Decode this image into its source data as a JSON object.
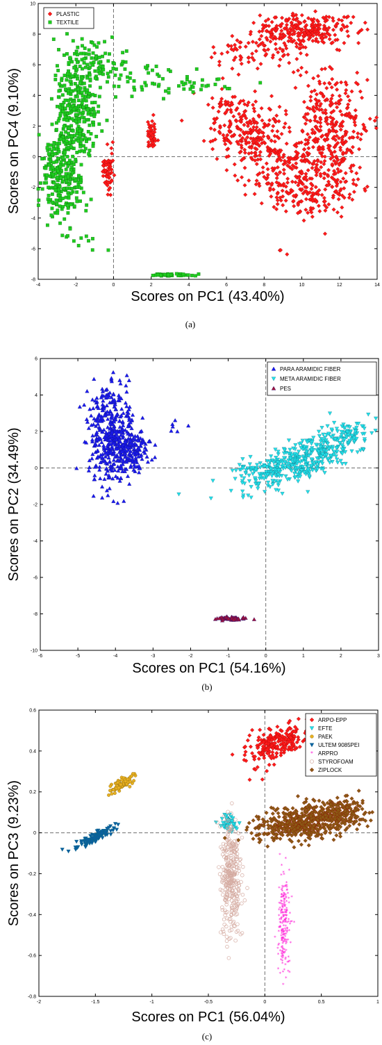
{
  "captions": [
    "(a)",
    "(b)",
    "(c)"
  ],
  "chart_data": [
    {
      "type": "scatter",
      "xlabel": "Scores on PC1 (43.40%)",
      "ylabel": "Scores on PC4 (9.10%)",
      "xlim": [
        -4,
        14
      ],
      "ylim": [
        -8,
        10
      ],
      "xticks": [
        -4,
        -2,
        0,
        2,
        4,
        6,
        8,
        10,
        12,
        14
      ],
      "yticks": [
        -8,
        -6,
        -4,
        -2,
        0,
        2,
        4,
        6,
        8,
        10
      ],
      "reference_lines": {
        "x": 0,
        "y": 0
      },
      "legend_position": "top-left",
      "series": [
        {
          "name": "PLASTIC",
          "color": "#ff1a1a",
          "marker": "diamond",
          "clusters": [
            {
              "center": [
                10,
                8.2
              ],
              "spread": [
                1.3,
                0.55
              ],
              "count": 260,
              "tilt": 0
            },
            {
              "center": [
                7.5,
                6.8
              ],
              "spread": [
                1.3,
                0.7
              ],
              "count": 70,
              "tilt": 0
            },
            {
              "center": [
                7.2,
                1.6
              ],
              "spread": [
                1.0,
                1.0
              ],
              "count": 220,
              "tilt": -0.2
            },
            {
              "center": [
                11.6,
                2.0
              ],
              "spread": [
                1.0,
                1.9
              ],
              "count": 320,
              "tilt": 0
            },
            {
              "center": [
                10.0,
                -1.3
              ],
              "spread": [
                1.6,
                1.1
              ],
              "count": 220,
              "tilt": -0.3
            },
            {
              "center": [
                9.5,
                -2.7
              ],
              "spread": [
                1.2,
                0.6
              ],
              "count": 70,
              "tilt": -0.2
            },
            {
              "center": [
                2.0,
                1.3
              ],
              "spread": [
                0.12,
                0.45
              ],
              "count": 45,
              "tilt": 0
            },
            {
              "center": [
                -0.3,
                -1.0
              ],
              "spread": [
                0.18,
                0.75
              ],
              "count": 60,
              "tilt": 0
            },
            {
              "center": [
                6.0,
                3.4
              ],
              "spread": [
                0.4,
                0.5
              ],
              "count": 25,
              "tilt": 0
            },
            {
              "center": [
                9.3,
                -6.1
              ],
              "spread": [
                0.3,
                0.2
              ],
              "count": 3,
              "tilt": 0
            }
          ]
        },
        {
          "name": "TEXTILE",
          "color": "#1fcc1f",
          "marker": "square",
          "clusters": [
            {
              "center": [
                -2.0,
                3.0
              ],
              "spread": [
                0.6,
                1.9
              ],
              "count": 320,
              "tilt": 0.25
            },
            {
              "center": [
                -2.8,
                -1.5
              ],
              "spread": [
                0.55,
                1.3
              ],
              "count": 240,
              "tilt": 0
            },
            {
              "center": [
                -1.0,
                6.2
              ],
              "spread": [
                0.8,
                0.8
              ],
              "count": 70,
              "tilt": 0
            },
            {
              "center": [
                1.8,
                5.4
              ],
              "spread": [
                1.7,
                0.7
              ],
              "count": 50,
              "tilt": 0
            },
            {
              "center": [
                4.2,
                4.7
              ],
              "spread": [
                0.9,
                0.3
              ],
              "count": 20,
              "tilt": 0
            },
            {
              "center": [
                -1.7,
                -5.2
              ],
              "spread": [
                0.5,
                0.5
              ],
              "count": 10,
              "tilt": 0
            },
            {
              "center": [
                2.9,
                -7.7
              ],
              "spread": [
                0.6,
                0.05
              ],
              "count": 45,
              "tilt": 0
            }
          ]
        }
      ]
    },
    {
      "type": "scatter",
      "xlabel": "Scores on PC1 (54.16%)",
      "ylabel": "Scores on PC2 (34.49%)",
      "xlim": [
        -6,
        3
      ],
      "ylim": [
        -10,
        6
      ],
      "xticks": [
        -6,
        -5,
        -4,
        -3,
        -2,
        -1,
        0,
        1,
        2,
        3
      ],
      "yticks": [
        -10,
        -8,
        -6,
        -4,
        -2,
        0,
        2,
        4,
        6
      ],
      "reference_lines": {
        "x": 0,
        "y": 0
      },
      "legend_position": "top-right",
      "series": [
        {
          "name": "PARA ARAMIDIC FIBER",
          "color": "#1a1aee",
          "marker": "triangle-up",
          "clusters": [
            {
              "center": [
                -4.1,
                1.7
              ],
              "spread": [
                0.32,
                1.4
              ],
              "count": 420,
              "tilt": 0
            },
            {
              "center": [
                -3.55,
                0.9
              ],
              "spread": [
                0.22,
                0.55
              ],
              "count": 120,
              "tilt": 0
            },
            {
              "center": [
                -2.6,
                2.1
              ],
              "spread": [
                0.2,
                0.3
              ],
              "count": 6,
              "tilt": 0
            }
          ]
        },
        {
          "name": "META ARAMIDIC FIBER",
          "color": "#22e0e8",
          "marker": "triangle-down",
          "clusters": [
            {
              "center": [
                1.0,
                0.5
              ],
              "spread": [
                0.9,
                0.55
              ],
              "count": 460,
              "tilt": 0.42
            },
            {
              "center": [
                2.3,
                1.9
              ],
              "spread": [
                0.25,
                0.35
              ],
              "count": 40,
              "tilt": 0
            },
            {
              "center": [
                -0.3,
                0.0
              ],
              "spread": [
                0.25,
                0.08
              ],
              "count": 15,
              "tilt": 0
            }
          ]
        },
        {
          "name": "PES",
          "color": "#a0123a",
          "marker": "triangle-up",
          "clusters": [
            {
              "center": [
                -0.95,
                -8.25
              ],
              "spread": [
                0.18,
                0.04
              ],
              "count": 60,
              "tilt": 0
            }
          ]
        }
      ]
    },
    {
      "type": "scatter",
      "xlabel": "Scores on PC1 (56.04%)",
      "ylabel": "Scores on PC3 (9.23%)",
      "xlim": [
        -2,
        1
      ],
      "ylim": [
        -0.8,
        0.6
      ],
      "xticks": [
        -2,
        -1.5,
        -1,
        -0.5,
        0,
        0.5,
        1
      ],
      "yticks": [
        -0.8,
        -0.6,
        -0.4,
        -0.2,
        0,
        0.2,
        0.4,
        0.6
      ],
      "reference_lines": {
        "x": 0,
        "y": 0
      },
      "legend_position": "top-right",
      "series": [
        {
          "name": "ARPO-EPP",
          "color": "#ff1a1a",
          "marker": "diamond",
          "clusters": [
            {
              "center": [
                0.12,
                0.44
              ],
              "spread": [
                0.13,
                0.035
              ],
              "count": 230,
              "tilt": 0.35
            },
            {
              "center": [
                -0.05,
                0.27
              ],
              "spread": [
                0.03,
                0.03
              ],
              "count": 6,
              "tilt": 0
            }
          ]
        },
        {
          "name": "EFTE",
          "color": "#22e0e8",
          "marker": "triangle-down",
          "clusters": [
            {
              "center": [
                -0.32,
                0.05
              ],
              "spread": [
                0.035,
                0.02
              ],
              "count": 50,
              "tilt": 0
            }
          ]
        },
        {
          "name": "PAEK",
          "color": "#e8b020",
          "marker": "circle",
          "clusters": [
            {
              "center": [
                -1.27,
                0.235
              ],
              "spread": [
                0.065,
                0.012
              ],
              "count": 80,
              "tilt": 0.7
            }
          ]
        },
        {
          "name": "ULTEM 9085PEI",
          "color": "#0a5fa0",
          "marker": "triangle-down",
          "clusters": [
            {
              "center": [
                -1.5,
                -0.02
              ],
              "spread": [
                0.085,
                0.012
              ],
              "count": 100,
              "tilt": 0.55
            }
          ]
        },
        {
          "name": "ARPRO",
          "color": "#ff22d8",
          "marker": "star",
          "clusters": [
            {
              "center": [
                0.17,
                -0.43
              ],
              "spread": [
                0.025,
                0.13
              ],
              "count": 200,
              "tilt": 0.15
            }
          ]
        },
        {
          "name": "STYROFOAM",
          "color": "#d4aaa0",
          "marker": "open-circle",
          "clusters": [
            {
              "center": [
                -0.3,
                -0.22
              ],
              "spread": [
                0.045,
                0.14
              ],
              "count": 320,
              "tilt": 0
            }
          ]
        },
        {
          "name": "ZIPLOCK",
          "color": "#8a5a14",
          "marker": "diamond",
          "clusters": [
            {
              "center": [
                0.35,
                0.05
              ],
              "spread": [
                0.22,
                0.04
              ],
              "count": 520,
              "tilt": 0.1
            },
            {
              "center": [
                0.65,
                0.1
              ],
              "spread": [
                0.12,
                0.035
              ],
              "count": 160,
              "tilt": 0
            }
          ]
        }
      ]
    }
  ]
}
